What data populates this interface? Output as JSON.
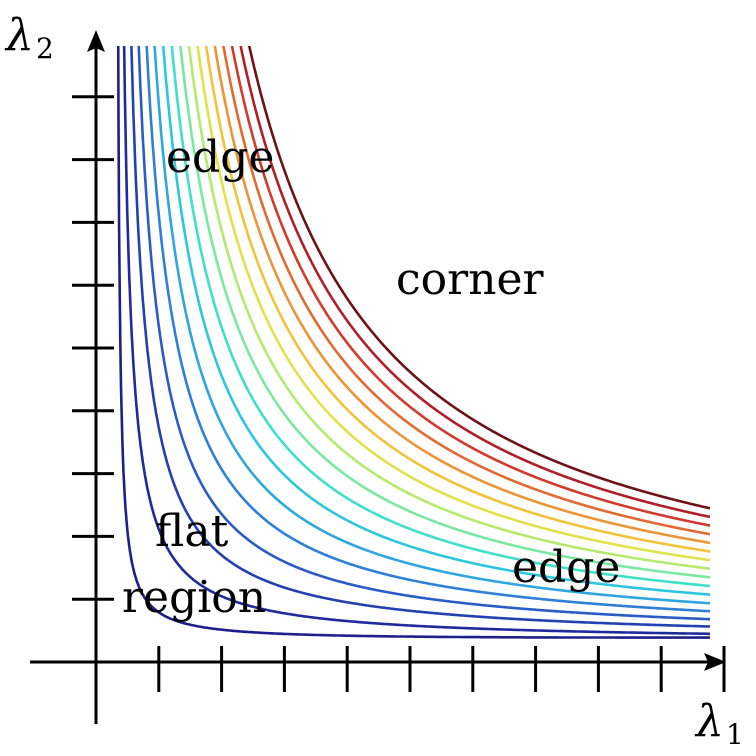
{
  "chart_data": {
    "type": "contour",
    "title": "",
    "xlabel": {
      "symbol": "λ",
      "sub": "1"
    },
    "ylabel": {
      "symbol": "λ",
      "sub": "2"
    },
    "x_ticks": 10,
    "y_ticks": 9,
    "levels": [
      {
        "k": 0.3,
        "color": "#1f1f8c"
      },
      {
        "k": 1.2,
        "color": "#202a9c"
      },
      {
        "k": 2.3,
        "color": "#2340b0"
      },
      {
        "k": 3.4,
        "color": "#2a5cc8"
      },
      {
        "k": 4.6,
        "color": "#2f7fd8"
      },
      {
        "k": 5.8,
        "color": "#2ea6e0"
      },
      {
        "k": 7.1,
        "color": "#2cc7df"
      },
      {
        "k": 8.4,
        "color": "#3fe0c8"
      },
      {
        "k": 9.7,
        "color": "#7ae8a0"
      },
      {
        "k": 11.0,
        "color": "#b4ea6e"
      },
      {
        "k": 12.3,
        "color": "#e0e24a"
      },
      {
        "k": 13.6,
        "color": "#f2c23a"
      },
      {
        "k": 14.9,
        "color": "#ec9436"
      },
      {
        "k": 16.2,
        "color": "#e26a32"
      },
      {
        "k": 17.5,
        "color": "#d23a2c"
      },
      {
        "k": 18.8,
        "color": "#b01e28"
      },
      {
        "k": 20.1,
        "color": "#6e1218"
      }
    ],
    "regions": {
      "edge_top": "edge",
      "corner": "corner",
      "flat_1": "flat",
      "flat_2": "region",
      "edge_right": "edge"
    }
  }
}
